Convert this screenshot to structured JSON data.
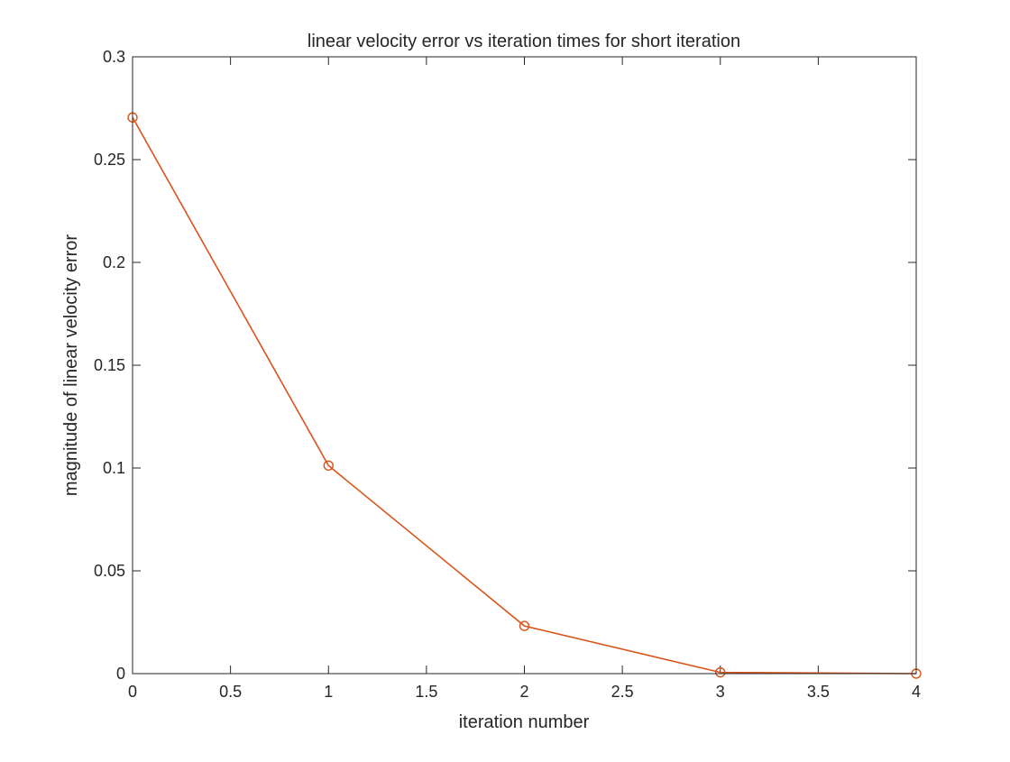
{
  "chart_data": {
    "type": "line",
    "title": "linear velocity error vs iteration times for short iteration",
    "xlabel": "iteration number",
    "ylabel": "magnitude of linear velocity error",
    "xlim": [
      0,
      4
    ],
    "ylim": [
      0,
      0.3
    ],
    "xticks": [
      0,
      0.5,
      1,
      1.5,
      2,
      2.5,
      3,
      3.5,
      4
    ],
    "xtick_labels": [
      "0",
      "0.5",
      "1",
      "1.5",
      "2",
      "2.5",
      "3",
      "3.5",
      "4"
    ],
    "yticks": [
      0,
      0.05,
      0.1,
      0.15,
      0.2,
      0.25,
      0.3
    ],
    "ytick_labels": [
      "0",
      "0.05",
      "0.1",
      "0.15",
      "0.2",
      "0.25",
      "0.3"
    ],
    "grid": false,
    "marker": "circle",
    "line_color": "#d95319",
    "series": [
      {
        "x": [
          0,
          1,
          2,
          3,
          4
        ],
        "y": [
          0.2705,
          0.1012,
          0.0232,
          0.0006,
          0.0
        ]
      }
    ]
  }
}
